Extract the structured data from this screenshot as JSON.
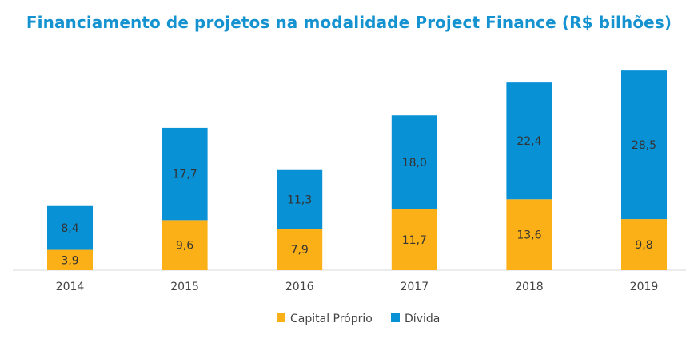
{
  "chart_data": {
    "type": "bar",
    "stacked": true,
    "title": "Financiamento de projetos na modalidade Project Finance (R$ bilhões)",
    "categories": [
      "2014",
      "2015",
      "2016",
      "2017",
      "2018",
      "2019"
    ],
    "series": [
      {
        "name": "Capital Próprio",
        "color": "#fcb017",
        "values": [
          3.9,
          9.6,
          7.9,
          11.7,
          13.6,
          9.8
        ],
        "labels": [
          "3,9",
          "9,6",
          "7,9",
          "11,7",
          "13,6",
          "9,8"
        ]
      },
      {
        "name": "Dívida",
        "color": "#0891d5",
        "values": [
          8.4,
          17.7,
          11.3,
          18.0,
          22.4,
          28.5
        ],
        "labels": [
          "8,4",
          "17,7",
          "11,3",
          "18,0",
          "22,4",
          "28,5"
        ]
      }
    ],
    "ylim": [
      0,
      42
    ],
    "grid": false,
    "legend": "bottom",
    "xlabel": "",
    "ylabel": ""
  }
}
